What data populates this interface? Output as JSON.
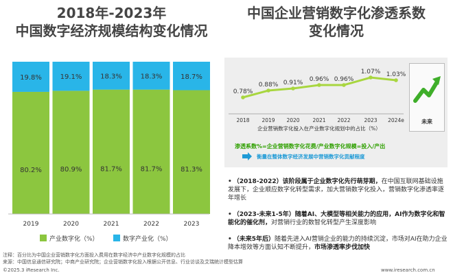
{
  "titles": {
    "left": "2018年-2023年\n中国数字经济规模结构变化情况",
    "left_line1": "2018年-2023年",
    "left_line2": "中国数字经济规模结构变化情况",
    "right_line1": "中国企业营销数字化渗透系数",
    "right_line2": "变化情况"
  },
  "colors": {
    "industry_digital": "#8cc63f",
    "digital_industry": "#29b5e8",
    "penetration_line": "#a8d63f",
    "panel_bg": "#eeeeee",
    "eq_green": "#2fa000",
    "eq_blue": "#1e9ad6"
  },
  "chart_data": [
    {
      "type": "bar",
      "stacked": true,
      "percent_stacked": true,
      "categories": [
        "2019",
        "2020",
        "2021",
        "2022",
        "2023"
      ],
      "series": [
        {
          "name": "产业数字化（%）",
          "values": [
            80.2,
            80.9,
            81.7,
            81.7,
            81.3
          ],
          "labels": [
            "80.2%",
            "80.9%",
            "81.7%",
            "81.7%",
            "81.3%"
          ]
        },
        {
          "name": "数字产业化（%）",
          "values": [
            19.8,
            19.1,
            18.3,
            18.3,
            18.7
          ],
          "labels": [
            "19.8%",
            "19.1%",
            "18.3%",
            "18.3%",
            "18.7%"
          ]
        }
      ],
      "ylim": [
        0,
        100
      ],
      "legend": "bottom"
    },
    {
      "type": "line",
      "x": [
        "2018",
        "2019",
        "2020",
        "2021",
        "2022",
        "2023",
        "2024e"
      ],
      "series": [
        {
          "values": [
            0.78,
            0.88,
            0.91,
            0.96,
            0.96,
            1.07,
            1.03
          ],
          "labels": [
            "0.78%",
            "0.88%",
            "0.91%",
            "0.96%",
            "0.96%",
            "1.07%",
            "1.03%"
          ]
        }
      ],
      "xlabel": "企业营销数字化投入在产业数字化规划中的占比（%）"
    }
  ],
  "legend": {
    "item1": "产业数字化（%）",
    "item2": "数字产业化（%）"
  },
  "penetration": {
    "xlabel": "企业营销数字化投入在产业数字化规划中的占比（%）",
    "formula": "渗透系数%=企业营销数字化花费/产业数字化规模=投入/产出",
    "definition": "衡量在整体数字经济发展中营销数字化贡献程度",
    "future_label": "未来"
  },
  "bullets": [
    {
      "bold": "（2018-2022）该阶段属于企业数字化先行萌芽期，",
      "text": "在中国互联网基础设施发展下，企业顺应数字化转型需求，加大营销数字化投入，营销数字化渗透率逐年增长"
    },
    {
      "bold": "（2023-未来1-5年）随着AI、大模型等相关能力的应用，AI作为数字化和智能化的催化剂，",
      "text": "对营销行业的数智化转型产生深度影响"
    },
    {
      "bold": "（未来5年后）",
      "text": "随着先进入AI营销企业的能力的持续沉淀，市场对AI在助力企业降本增效等方面认知不断提升，",
      "tail": "市场渗透率步伐加快"
    }
  ],
  "notes": {
    "note": "注释：百分比为中国企业营销数字化方面投入费用在数字经济中产业数字化规模的占比",
    "source": "来源：中国信息通信研究院；中商产业研究院；企业营销数字化投入根据公开信息、行业访谈及艾瑞统计模型估算",
    "copyright": "©2025.3 iResearch Inc.",
    "website": "www.iresearch.com.cn"
  }
}
